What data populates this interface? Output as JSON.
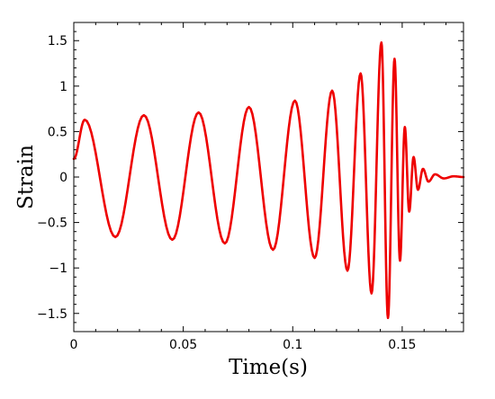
{
  "chart_data": {
    "type": "line",
    "xlabel": "Time(s)",
    "ylabel": "Strain",
    "xlim": [
      0,
      0.178
    ],
    "ylim": [
      -1.7,
      1.7
    ],
    "xticks": [
      0,
      0.05,
      0.1,
      0.15
    ],
    "xtick_labels": [
      "0",
      "0.05",
      "0.1",
      "0.15"
    ],
    "yticks": [
      -1.5,
      -1,
      -0.5,
      0,
      0.5,
      1,
      1.5
    ],
    "ytick_labels": [
      "−1.5",
      "−1",
      "−0.5",
      "0",
      "0.5",
      "1",
      "1.5"
    ],
    "grid": false,
    "series": [
      {
        "color": "#ee0000",
        "extrema": [
          {
            "x": 0.0,
            "y": 0.2
          },
          {
            "x": 0.005,
            "y": 0.63
          },
          {
            "x": 0.019,
            "y": -0.66
          },
          {
            "x": 0.032,
            "y": 0.68
          },
          {
            "x": 0.045,
            "y": -0.69
          },
          {
            "x": 0.057,
            "y": 0.71
          },
          {
            "x": 0.069,
            "y": -0.73
          },
          {
            "x": 0.08,
            "y": 0.77
          },
          {
            "x": 0.091,
            "y": -0.8
          },
          {
            "x": 0.101,
            "y": 0.84
          },
          {
            "x": 0.11,
            "y": -0.89
          },
          {
            "x": 0.118,
            "y": 0.95
          },
          {
            "x": 0.125,
            "y": -1.03
          },
          {
            "x": 0.131,
            "y": 1.14
          },
          {
            "x": 0.136,
            "y": -1.28
          },
          {
            "x": 0.1405,
            "y": 1.48
          },
          {
            "x": 0.1435,
            "y": -1.55
          },
          {
            "x": 0.1465,
            "y": 1.3
          },
          {
            "x": 0.149,
            "y": -0.92
          },
          {
            "x": 0.1512,
            "y": 0.55
          },
          {
            "x": 0.1532,
            "y": -0.38
          },
          {
            "x": 0.1552,
            "y": 0.22
          },
          {
            "x": 0.1572,
            "y": -0.14
          },
          {
            "x": 0.1595,
            "y": 0.09
          },
          {
            "x": 0.162,
            "y": -0.05
          },
          {
            "x": 0.165,
            "y": 0.03
          },
          {
            "x": 0.169,
            "y": -0.015
          },
          {
            "x": 0.1735,
            "y": 0.008
          },
          {
            "x": 0.178,
            "y": 0.0
          }
        ]
      }
    ]
  }
}
